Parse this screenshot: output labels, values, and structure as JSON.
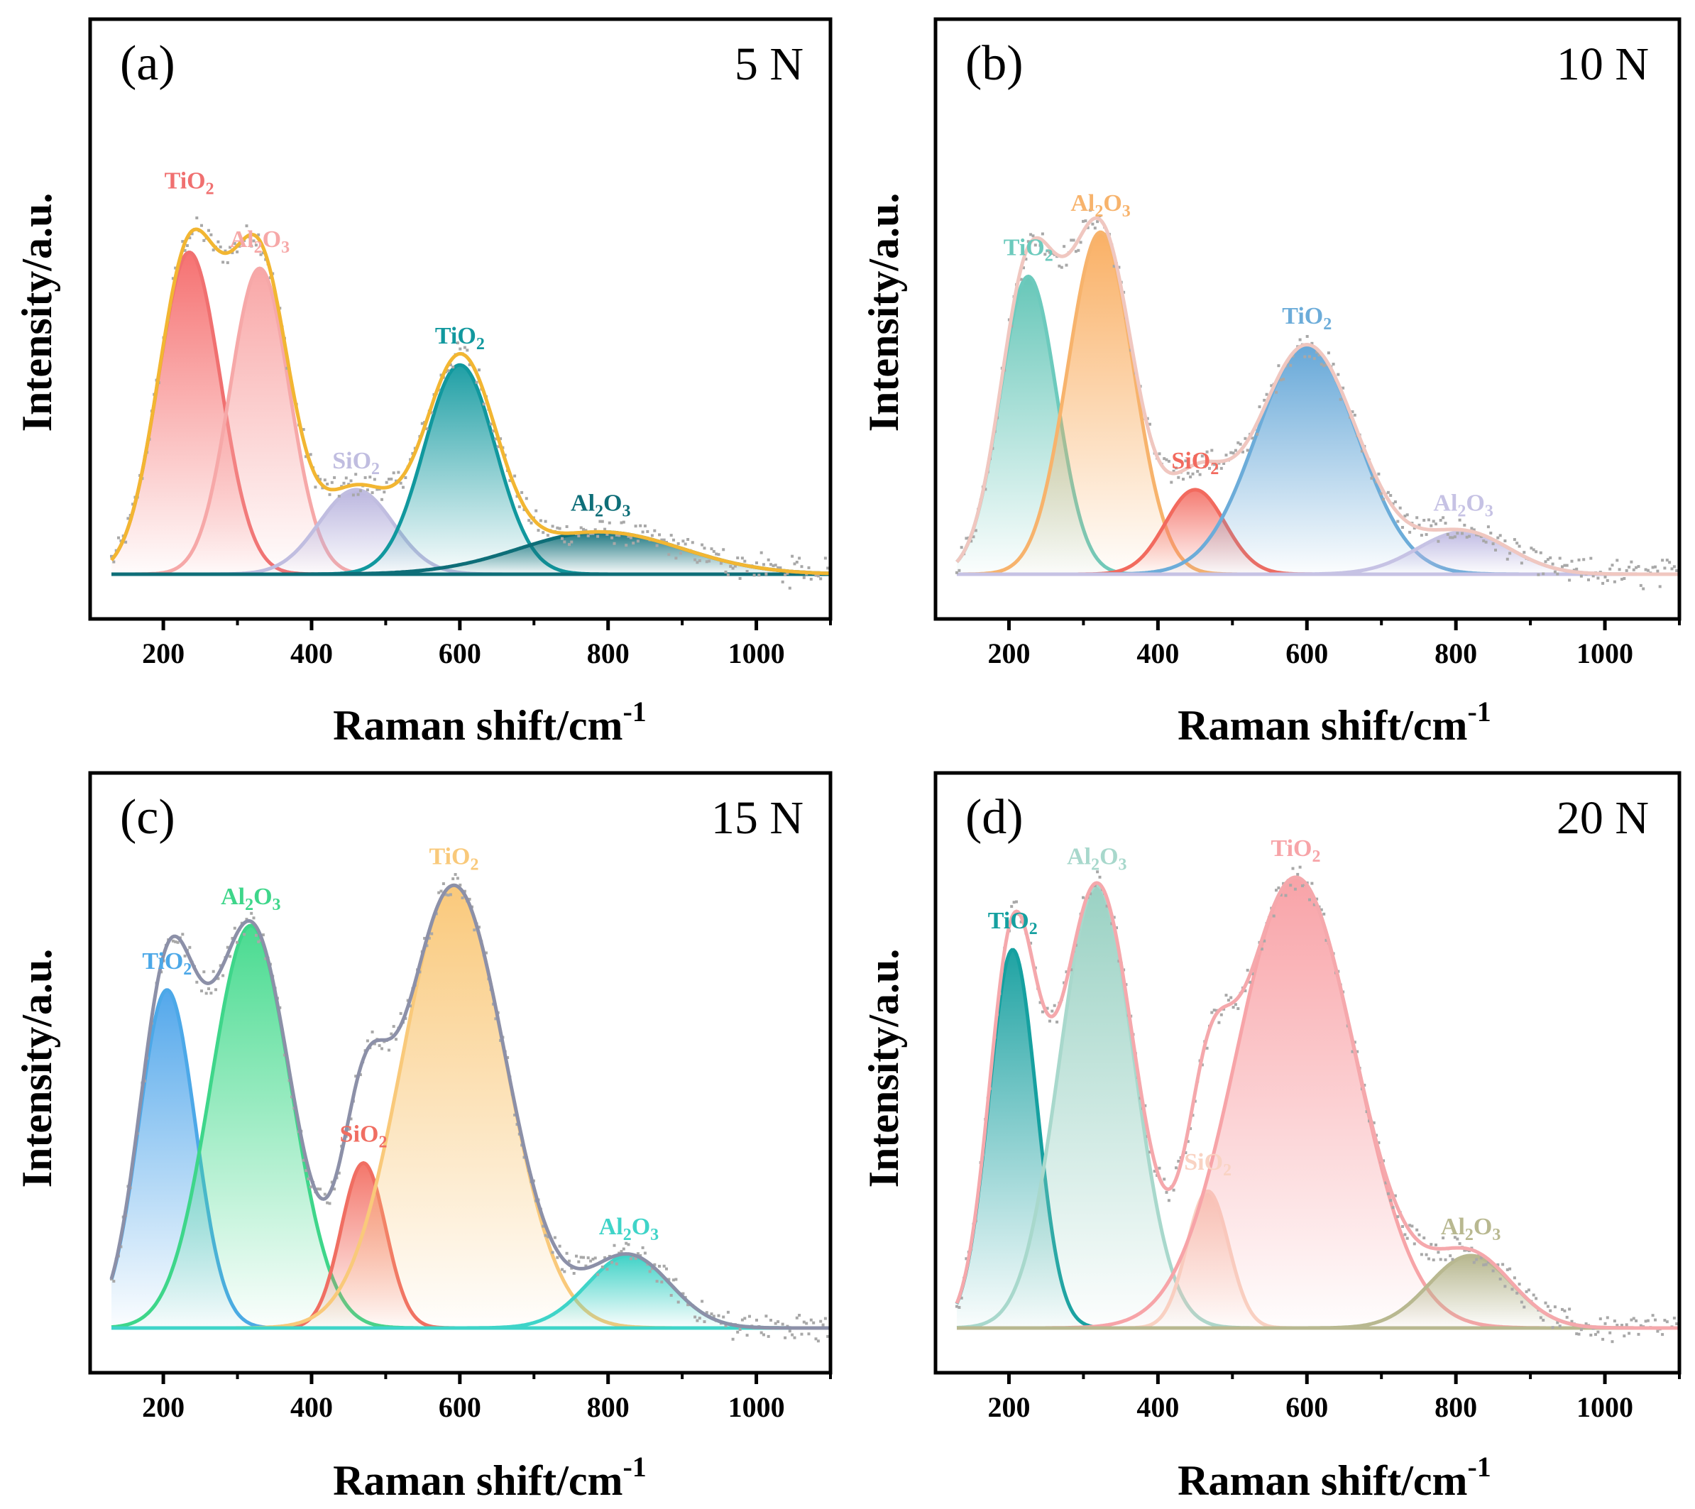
{
  "figure": {
    "x_axis_title": "Raman shift/cm",
    "x_axis_superscript": "-1",
    "y_axis_title": "Intensity/a.u."
  },
  "colors": {
    "gray_points": "#a8a8a8",
    "axis": "#000000"
  },
  "chart_data": [
    {
      "type": "line",
      "panel": "(a)",
      "load": "5 N",
      "xlim": [
        130,
        1100
      ],
      "ylim": [
        0,
        1.15
      ],
      "x_ticks": [
        200,
        400,
        600,
        800,
        1000
      ],
      "envelope_color": "#f2b632",
      "baseline_color": "#0e6e78",
      "peaks": [
        {
          "label": "TiO",
          "sub": "2",
          "center": 235,
          "height": 0.8,
          "sigma": 42,
          "color": "#f07070",
          "fill": "#f56a6a"
        },
        {
          "label": "Al",
          "sub": "2",
          "label2": "O",
          "sub2": "3",
          "center": 330,
          "height": 0.76,
          "sigma": 40,
          "color": "#f6a8a8",
          "fill": "#f8a2a2"
        },
        {
          "label": "SiO",
          "sub": "2",
          "center": 460,
          "height": 0.21,
          "sigma": 50,
          "color": "#c0bde0",
          "fill": "#b7b2dd"
        },
        {
          "label": "TiO",
          "sub": "2",
          "center": 600,
          "height": 0.52,
          "sigma": 48,
          "color": "#11989e",
          "fill": "#139aa0"
        },
        {
          "label": "Al",
          "sub": "2",
          "label2": "O",
          "sub2": "3",
          "center": 790,
          "height": 0.105,
          "sigma": 110,
          "color": "#0e6e78",
          "fill": "#0e6e78"
        }
      ]
    },
    {
      "type": "line",
      "panel": "(b)",
      "load": "10 N",
      "xlim": [
        130,
        1100
      ],
      "ylim": [
        0,
        1.15
      ],
      "x_ticks": [
        200,
        400,
        600,
        800,
        1000
      ],
      "envelope_color": "#f0c7c0",
      "baseline_color": "#c6c2e4",
      "peaks": [
        {
          "label": "TiO",
          "sub": "2",
          "center": 226,
          "height": 0.74,
          "sigma": 38,
          "color": "#6ccabd",
          "fill": "#5fc4b5"
        },
        {
          "label": "Al",
          "sub": "2",
          "label2": "O",
          "sub2": "3",
          "center": 323,
          "height": 0.85,
          "sigma": 44,
          "color": "#f7b36c",
          "fill": "#f9ac5d"
        },
        {
          "label": "SiO",
          "sub": "2",
          "center": 450,
          "height": 0.21,
          "sigma": 40,
          "color": "#f26a5e",
          "fill": "#f4756b"
        },
        {
          "label": "TiO",
          "sub": "2",
          "center": 600,
          "height": 0.57,
          "sigma": 68,
          "color": "#6cacd9",
          "fill": "#5ea3d6"
        },
        {
          "label": "Al",
          "sub": "2",
          "label2": "O",
          "sub2": "3",
          "center": 810,
          "height": 0.105,
          "sigma": 62,
          "color": "#c6c2e4",
          "fill": "#bdb8e2"
        }
      ]
    },
    {
      "type": "line",
      "panel": "(c)",
      "load": "15 N",
      "xlim": [
        130,
        1100
      ],
      "ylim": [
        0,
        1.15
      ],
      "x_ticks": [
        200,
        400,
        600,
        800,
        1000
      ],
      "envelope_color": "#8c90a8",
      "baseline_color": "#3fd4c8",
      "peaks": [
        {
          "label": "TiO",
          "sub": "2",
          "center": 205,
          "height": 0.84,
          "sigma": 38,
          "color": "#4ca8e8",
          "fill": "#4aa3ea"
        },
        {
          "label": "Al",
          "sub": "2",
          "label2": "O",
          "sub2": "3",
          "center": 318,
          "height": 1.0,
          "sigma": 54,
          "color": "#3ed68a",
          "fill": "#3fd98a"
        },
        {
          "label": "SiO",
          "sub": "2",
          "center": 470,
          "height": 0.41,
          "sigma": 30,
          "color": "#f06e62",
          "fill": "#f36f63"
        },
        {
          "label": "TiO",
          "sub": "2",
          "center": 592,
          "height": 1.1,
          "sigma": 70,
          "color": "#f9c97a",
          "fill": "#f9c674"
        },
        {
          "label": "Al",
          "sub": "2",
          "label2": "O",
          "sub2": "3",
          "center": 828,
          "height": 0.18,
          "sigma": 56,
          "color": "#3fd4c8",
          "fill": "#37d0c4"
        }
      ]
    },
    {
      "type": "line",
      "panel": "(d)",
      "load": "20 N",
      "xlim": [
        130,
        1100
      ],
      "ylim": [
        0,
        1.15
      ],
      "x_ticks": [
        200,
        400,
        600,
        800,
        1000
      ],
      "envelope_color": "#f5a8ac",
      "baseline_color": "#b8b890",
      "peaks": [
        {
          "label": "TiO",
          "sub": "2",
          "center": 205,
          "height": 0.94,
          "sigma": 32,
          "color": "#15a0a0",
          "fill": "#139e9e"
        },
        {
          "label": "Al",
          "sub": "2",
          "label2": "O",
          "sub2": "3",
          "center": 318,
          "height": 1.1,
          "sigma": 50,
          "color": "#a8d8cc",
          "fill": "#94cfc0"
        },
        {
          "label": "SiO",
          "sub": "2",
          "center": 467,
          "height": 0.34,
          "sigma": 28,
          "color": "#f9d3c3",
          "fill": "#f8cbb8"
        },
        {
          "label": "TiO",
          "sub": "2",
          "center": 585,
          "height": 1.12,
          "sigma": 80,
          "color": "#f7a4a8",
          "fill": "#f89ea3"
        },
        {
          "label": "Al",
          "sub": "2",
          "label2": "O",
          "sub2": "3",
          "center": 820,
          "height": 0.18,
          "sigma": 56,
          "color": "#b8b890",
          "fill": "#b3b389"
        }
      ]
    }
  ]
}
